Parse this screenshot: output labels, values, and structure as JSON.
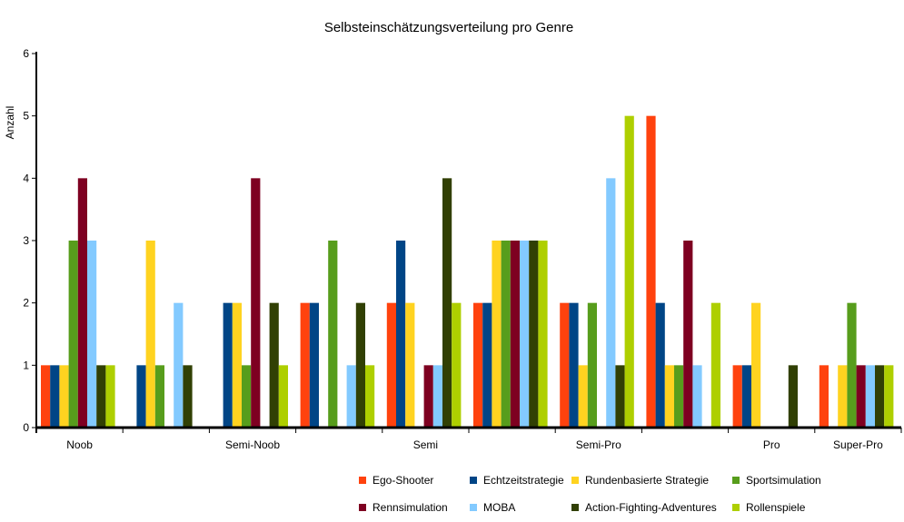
{
  "chart_data": {
    "type": "bar",
    "title": "Selbsteinschätzungsverteilung pro Genre",
    "ylabel": "Anzahl",
    "xlabel": "",
    "ylim": [
      0,
      6
    ],
    "yticks": [
      0,
      1,
      2,
      3,
      4,
      5,
      6
    ],
    "categories": [
      "Noob",
      "",
      "Semi-Noob",
      "",
      "Semi",
      "",
      "Semi-Pro",
      "",
      "Pro",
      "Super-Pro"
    ],
    "series": [
      {
        "name": "Ego-Shooter",
        "color": "#ff420e",
        "values": [
          1,
          0,
          0,
          2,
          2,
          2,
          2,
          5,
          1,
          1
        ]
      },
      {
        "name": "Echtzeitstrategie",
        "color": "#004586",
        "values": [
          1,
          1,
          2,
          2,
          3,
          2,
          2,
          2,
          1,
          0
        ]
      },
      {
        "name": "Rundenbasierte Strategie",
        "color": "#ffd320",
        "values": [
          1,
          3,
          2,
          0,
          2,
          3,
          1,
          1,
          2,
          1
        ]
      },
      {
        "name": "Sportsimulation",
        "color": "#579d1c",
        "values": [
          3,
          1,
          1,
          3,
          0,
          3,
          2,
          1,
          0,
          2
        ]
      },
      {
        "name": "Rennsimulation",
        "color": "#7e0021",
        "values": [
          4,
          0,
          4,
          0,
          1,
          3,
          0,
          3,
          0,
          1
        ]
      },
      {
        "name": "MOBA",
        "color": "#83caff",
        "values": [
          3,
          2,
          0,
          1,
          1,
          3,
          4,
          1,
          0,
          1
        ]
      },
      {
        "name": "Action-Fighting-Adventures",
        "color": "#314004",
        "values": [
          1,
          1,
          2,
          2,
          4,
          3,
          1,
          0,
          1,
          1
        ]
      },
      {
        "name": "Rollenspiele",
        "color": "#aecf00",
        "values": [
          1,
          0,
          1,
          1,
          2,
          3,
          5,
          2,
          0,
          1
        ]
      }
    ],
    "legend_position": "bottom-right",
    "grid": false
  }
}
